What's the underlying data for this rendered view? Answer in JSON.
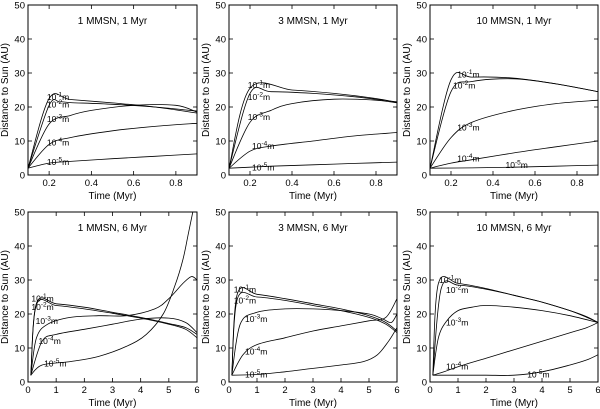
{
  "chart_data": [
    {
      "type": "line",
      "title": "1 MMSN, 1 Myr",
      "xlabel": "Time (Myr)",
      "ylabel": "Distance to Sun (AU)",
      "xlim": [
        0.1,
        0.9
      ],
      "ylim": [
        0,
        50
      ],
      "xticks": [
        "0.2",
        "0.4",
        "0.6",
        "0.8"
      ],
      "yticks": [
        "0",
        "10",
        "20",
        "30",
        "40",
        "50"
      ],
      "series": [
        {
          "name": "10^-1 m",
          "label_base": "10",
          "label_exp": "-1",
          "label_unit": "m",
          "label_at": [
            0.18,
            23.0
          ],
          "x": [
            0.1,
            0.2,
            0.3,
            0.5,
            0.7,
            0.9
          ],
          "y": [
            2,
            22.5,
            22.2,
            21.2,
            20.0,
            18.2
          ]
        },
        {
          "name": "10^-2 m",
          "label_base": "10",
          "label_exp": "-2",
          "label_unit": "m",
          "label_at": [
            0.18,
            20.8
          ],
          "x": [
            0.1,
            0.2,
            0.25,
            0.3,
            0.5,
            0.7,
            0.9
          ],
          "y": [
            2,
            20.5,
            21.5,
            21.3,
            20.8,
            20.0,
            18.8
          ]
        },
        {
          "name": "10^-3 m",
          "label_base": "10",
          "label_exp": "-3",
          "label_unit": "m",
          "label_at": [
            0.18,
            16.5
          ],
          "x": [
            0.1,
            0.2,
            0.3,
            0.4,
            0.6,
            0.8,
            0.9
          ],
          "y": [
            2,
            15.0,
            17.5,
            19.0,
            20.5,
            20.5,
            18.5
          ]
        },
        {
          "name": "10^-4 m",
          "label_base": "10",
          "label_exp": "-4",
          "label_unit": "m",
          "label_at": [
            0.18,
            9.5
          ],
          "x": [
            0.1,
            0.2,
            0.3,
            0.5,
            0.7,
            0.9
          ],
          "y": [
            2,
            9.0,
            11.0,
            13.0,
            14.3,
            15.2
          ]
        },
        {
          "name": "10^-5 m",
          "label_base": "10",
          "label_exp": "-5",
          "label_unit": "m",
          "label_at": [
            0.18,
            3.8
          ],
          "x": [
            0.1,
            0.2,
            0.3,
            0.5,
            0.7,
            0.9
          ],
          "y": [
            2,
            3.5,
            4.0,
            4.8,
            5.5,
            6.2
          ]
        }
      ]
    },
    {
      "type": "line",
      "title": "3 MMSN, 1 Myr",
      "xlabel": "Time (Myr)",
      "ylabel": "Distance to Sun (AU)",
      "xlim": [
        0.1,
        0.9
      ],
      "ylim": [
        0,
        50
      ],
      "xticks": [
        "0.2",
        "0.4",
        "0.6",
        "0.8"
      ],
      "yticks": [
        "0",
        "10",
        "20",
        "30",
        "40",
        "50"
      ],
      "series": [
        {
          "name": "10^-1 m",
          "label_base": "10",
          "label_exp": "-1",
          "label_unit": "m",
          "label_at": [
            0.18,
            26.5
          ],
          "x": [
            0.1,
            0.2,
            0.4,
            0.6,
            0.8,
            0.9
          ],
          "y": [
            2,
            25.5,
            25.0,
            24.0,
            22.5,
            21.3
          ]
        },
        {
          "name": "10^-2 m",
          "label_base": "10",
          "label_exp": "-2",
          "label_unit": "m",
          "label_at": [
            0.18,
            23.0
          ],
          "x": [
            0.1,
            0.2,
            0.3,
            0.5,
            0.7,
            0.9
          ],
          "y": [
            2,
            24.0,
            24.5,
            24.0,
            23.0,
            21.5
          ]
        },
        {
          "name": "10^-3 m",
          "label_base": "10",
          "label_exp": "-3",
          "label_unit": "m",
          "label_at": [
            0.18,
            17.0
          ],
          "x": [
            0.1,
            0.2,
            0.3,
            0.4,
            0.6,
            0.8,
            0.9
          ],
          "y": [
            2,
            15.5,
            19.0,
            21.0,
            22.3,
            22.0,
            21.2
          ]
        },
        {
          "name": "10^-4 m",
          "label_base": "10",
          "label_exp": "-4",
          "label_unit": "m",
          "label_at": [
            0.2,
            8.5
          ],
          "x": [
            0.1,
            0.2,
            0.3,
            0.5,
            0.7,
            0.9
          ],
          "y": [
            2,
            7.0,
            8.5,
            10.0,
            11.5,
            12.5
          ]
        },
        {
          "name": "10^-5 m",
          "label_base": "10",
          "label_exp": "-5",
          "label_unit": "m",
          "label_at": [
            0.2,
            2.2
          ],
          "x": [
            0.1,
            0.2,
            0.3,
            0.5,
            0.7,
            0.9
          ],
          "y": [
            2,
            2.3,
            2.6,
            3.0,
            3.4,
            3.8
          ]
        }
      ]
    },
    {
      "type": "line",
      "title": "10 MMSN, 1 Myr",
      "xlabel": "Time (Myr)",
      "ylabel": "Distance to Sun (AU)",
      "xlim": [
        0.1,
        0.9
      ],
      "ylim": [
        0,
        50
      ],
      "xticks": [
        "0.2",
        "0.4",
        "0.6",
        "0.8"
      ],
      "yticks": [
        "0",
        "10",
        "20",
        "30",
        "40",
        "50"
      ],
      "series": [
        {
          "name": "10^-1 m",
          "label_base": "10",
          "label_exp": "-1",
          "label_unit": "m",
          "label_at": [
            0.22,
            29.5
          ],
          "x": [
            0.1,
            0.2,
            0.3,
            0.5,
            0.7,
            0.9
          ],
          "y": [
            2,
            28.0,
            28.8,
            28.5,
            26.8,
            24.5
          ]
        },
        {
          "name": "10^-2 m",
          "label_base": "10",
          "label_exp": "-2",
          "label_unit": "m",
          "label_at": [
            0.2,
            26.3
          ],
          "x": [
            0.1,
            0.2,
            0.3,
            0.5,
            0.7,
            0.9
          ],
          "y": [
            2,
            24.5,
            27.5,
            28.3,
            26.8,
            24.5
          ]
        },
        {
          "name": "10^-3 m",
          "label_base": "10",
          "label_exp": "-3",
          "label_unit": "m",
          "label_at": [
            0.22,
            14.0
          ],
          "x": [
            0.1,
            0.2,
            0.3,
            0.5,
            0.7,
            0.9
          ],
          "y": [
            2,
            11.0,
            15.5,
            19.0,
            21.0,
            22.0
          ]
        },
        {
          "name": "10^-4 m",
          "label_base": "10",
          "label_exp": "-4",
          "label_unit": "m",
          "label_at": [
            0.22,
            4.8
          ],
          "x": [
            0.1,
            0.2,
            0.3,
            0.5,
            0.7,
            0.9
          ],
          "y": [
            2,
            3.5,
            4.5,
            6.5,
            8.3,
            10.0
          ]
        },
        {
          "name": "10^-5 m",
          "label_base": "10",
          "label_exp": "-5",
          "label_unit": "m",
          "label_at": [
            0.45,
            3.0
          ],
          "x": [
            0.1,
            0.3,
            0.5,
            0.7,
            0.9
          ],
          "y": [
            2,
            2.1,
            2.3,
            2.6,
            2.9
          ]
        }
      ]
    },
    {
      "type": "line",
      "title": "1 MMSN, 6 Myr",
      "xlabel": "Time (Myr)",
      "ylabel": "Distance to Sun (AU)",
      "xlim": [
        0,
        6
      ],
      "ylim": [
        0,
        50
      ],
      "xticks": [
        "0",
        "1",
        "2",
        "3",
        "4",
        "5",
        "6"
      ],
      "yticks": [
        "0",
        "10",
        "20",
        "30",
        "40",
        "50"
      ],
      "series": [
        {
          "name": "10^-1 m",
          "label_base": "10",
          "label_exp": "-1",
          "label_unit": "m",
          "label_at": [
            0.05,
            24.5
          ],
          "x": [
            0.1,
            0.3,
            1.0,
            2.0,
            3.0,
            4.0,
            5.0,
            5.6,
            6.0
          ],
          "y": [
            2,
            22.8,
            22.5,
            21.5,
            20.2,
            18.8,
            17.0,
            15.5,
            13.0
          ]
        },
        {
          "name": "10^-2 m",
          "label_base": "10",
          "label_exp": "-2",
          "label_unit": "m",
          "label_at": [
            0.05,
            22.0
          ],
          "x": [
            0.1,
            0.3,
            1.0,
            2.0,
            3.0,
            4.0,
            5.0,
            5.6,
            6.0
          ],
          "y": [
            2,
            23.2,
            23.0,
            22.0,
            20.5,
            19.0,
            17.2,
            16.0,
            14.0
          ]
        },
        {
          "name": "10^-3 m",
          "label_base": "10",
          "label_exp": "-3",
          "label_unit": "m",
          "label_at": [
            0.2,
            18.0
          ],
          "x": [
            0.1,
            0.3,
            0.7,
            1.5,
            2.5,
            3.5,
            4.5,
            5.0,
            5.5,
            5.8,
            6.0
          ],
          "y": [
            2,
            13.0,
            17.0,
            19.0,
            19.5,
            19.5,
            21.5,
            24.5,
            29.0,
            31.0,
            30.0
          ]
        },
        {
          "name": "10^-4 m",
          "label_base": "10",
          "label_exp": "-4",
          "label_unit": "m",
          "label_at": [
            0.3,
            12.0
          ],
          "x": [
            0.1,
            0.5,
            1.0,
            2.0,
            3.0,
            4.0,
            5.0,
            5.6,
            6.0
          ],
          "y": [
            2,
            12.0,
            14.0,
            15.5,
            17.0,
            18.5,
            18.8,
            17.5,
            14.5
          ]
        },
        {
          "name": "10^-5 m",
          "label_base": "10",
          "label_exp": "-5",
          "label_unit": "m",
          "label_at": [
            0.5,
            5.5
          ],
          "x": [
            0.1,
            0.5,
            1.5,
            2.5,
            3.5,
            4.2,
            4.8,
            5.2,
            5.5,
            5.7,
            5.85
          ],
          "y": [
            2,
            5.0,
            6.0,
            7.5,
            10.5,
            14.0,
            20.0,
            28.0,
            36.0,
            44.0,
            50.0
          ]
        }
      ]
    },
    {
      "type": "line",
      "title": "3 MMSN, 6 Myr",
      "xlabel": "Time (Myr)",
      "ylabel": "Distance to Sun (AU)",
      "xlim": [
        0,
        6
      ],
      "ylim": [
        0,
        50
      ],
      "xticks": [
        "0",
        "1",
        "2",
        "3",
        "4",
        "5",
        "6"
      ],
      "yticks": [
        "0",
        "10",
        "20",
        "30",
        "40",
        "50"
      ],
      "series": [
        {
          "name": "10^-1 m",
          "label_base": "10",
          "label_exp": "-1",
          "label_unit": "m",
          "label_at": [
            0.1,
            27.2
          ],
          "x": [
            0.1,
            0.3,
            1.0,
            2.0,
            3.0,
            4.0,
            5.0,
            5.6,
            6.0
          ],
          "y": [
            2,
            26.0,
            25.8,
            24.5,
            23.0,
            21.5,
            19.5,
            17.5,
            15.0
          ]
        },
        {
          "name": "10^-2 m",
          "label_base": "10",
          "label_exp": "-2",
          "label_unit": "m",
          "label_at": [
            0.1,
            24.0
          ],
          "x": [
            0.1,
            0.3,
            1.0,
            2.0,
            3.0,
            4.0,
            5.0,
            5.6,
            6.0
          ],
          "y": [
            2,
            24.5,
            25.0,
            24.0,
            22.5,
            21.0,
            19.0,
            17.0,
            14.5
          ]
        },
        {
          "name": "10^-3 m",
          "label_base": "10",
          "label_exp": "-3",
          "label_unit": "m",
          "label_at": [
            0.5,
            18.5
          ],
          "x": [
            0.1,
            0.4,
            1.0,
            2.0,
            3.0,
            4.0,
            5.0,
            5.5,
            5.8,
            6.0
          ],
          "y": [
            2,
            17.0,
            20.5,
            21.5,
            21.5,
            21.0,
            20.0,
            18.5,
            17.5,
            20.0
          ]
        },
        {
          "name": "10^-4 m",
          "label_base": "10",
          "label_exp": "-4",
          "label_unit": "m",
          "label_at": [
            0.5,
            9.0
          ],
          "x": [
            0.1,
            0.5,
            1.0,
            2.0,
            3.0,
            4.0,
            5.0,
            5.6,
            6.0
          ],
          "y": [
            2,
            8.0,
            11.0,
            13.0,
            15.0,
            16.5,
            18.0,
            19.0,
            24.5
          ]
        },
        {
          "name": "10^-5 m",
          "label_base": "10",
          "label_exp": "-5",
          "label_unit": "m",
          "label_at": [
            0.5,
            2.2
          ],
          "x": [
            0.1,
            1.0,
            2.0,
            3.0,
            4.0,
            4.8,
            5.3,
            5.7,
            6.0
          ],
          "y": [
            2,
            2.2,
            3.0,
            4.0,
            5.0,
            6.0,
            8.0,
            12.0,
            16.0
          ]
        }
      ]
    },
    {
      "type": "line",
      "title": "10 MMSN, 6 Myr",
      "xlabel": "Time (Myr)",
      "ylabel": "Distance to Sun (AU)",
      "xlim": [
        0,
        6
      ],
      "ylim": [
        0,
        50
      ],
      "xticks": [
        "0",
        "1",
        "2",
        "3",
        "4",
        "5",
        "6"
      ],
      "yticks": [
        "0",
        "10",
        "20",
        "30",
        "40",
        "50"
      ],
      "series": [
        {
          "name": "10^-1 m",
          "label_base": "10",
          "label_exp": "-1",
          "label_unit": "m",
          "label_at": [
            0.25,
            30.0
          ],
          "x": [
            0.1,
            0.3,
            1.0,
            2.0,
            3.0,
            4.0,
            5.0,
            5.6,
            6.0
          ],
          "y": [
            2,
            29.0,
            29.0,
            27.5,
            25.5,
            23.5,
            21.0,
            19.0,
            17.5
          ]
        },
        {
          "name": "10^-2 m",
          "label_base": "10",
          "label_exp": "-2",
          "label_unit": "m",
          "label_at": [
            0.5,
            27.0
          ],
          "x": [
            0.1,
            0.4,
            1.0,
            2.0,
            3.0,
            4.0,
            5.0,
            5.6,
            6.0
          ],
          "y": [
            2,
            27.5,
            28.5,
            27.3,
            25.5,
            23.5,
            21.0,
            19.2,
            17.5
          ]
        },
        {
          "name": "10^-3 m",
          "label_base": "10",
          "label_exp": "-3",
          "label_unit": "m",
          "label_at": [
            0.5,
            17.5
          ],
          "x": [
            0.1,
            0.3,
            0.6,
            1.0,
            1.5,
            2.0,
            3.0,
            4.0,
            5.0,
            6.0
          ],
          "y": [
            2,
            13.0,
            18.0,
            21.0,
            22.0,
            22.5,
            22.0,
            21.0,
            19.5,
            17.5
          ]
        },
        {
          "name": "10^-4 m",
          "label_base": "10",
          "label_exp": "-4",
          "label_unit": "m",
          "label_at": [
            0.5,
            4.5
          ],
          "x": [
            0.1,
            0.5,
            1.0,
            2.0,
            3.0,
            4.0,
            5.0,
            5.6,
            6.0
          ],
          "y": [
            2,
            3.0,
            4.5,
            7.0,
            9.5,
            12.0,
            14.5,
            16.0,
            17.5
          ]
        },
        {
          "name": "10^-5 m",
          "label_base": "10",
          "label_exp": "-5",
          "label_unit": "m",
          "label_at": [
            3.4,
            2.2
          ],
          "x": [
            0.1,
            1.0,
            2.0,
            3.0,
            4.0,
            5.0,
            5.6,
            6.0
          ],
          "y": [
            2,
            2.0,
            2.0,
            2.0,
            3.0,
            5.0,
            6.5,
            8.0
          ]
        }
      ]
    }
  ]
}
